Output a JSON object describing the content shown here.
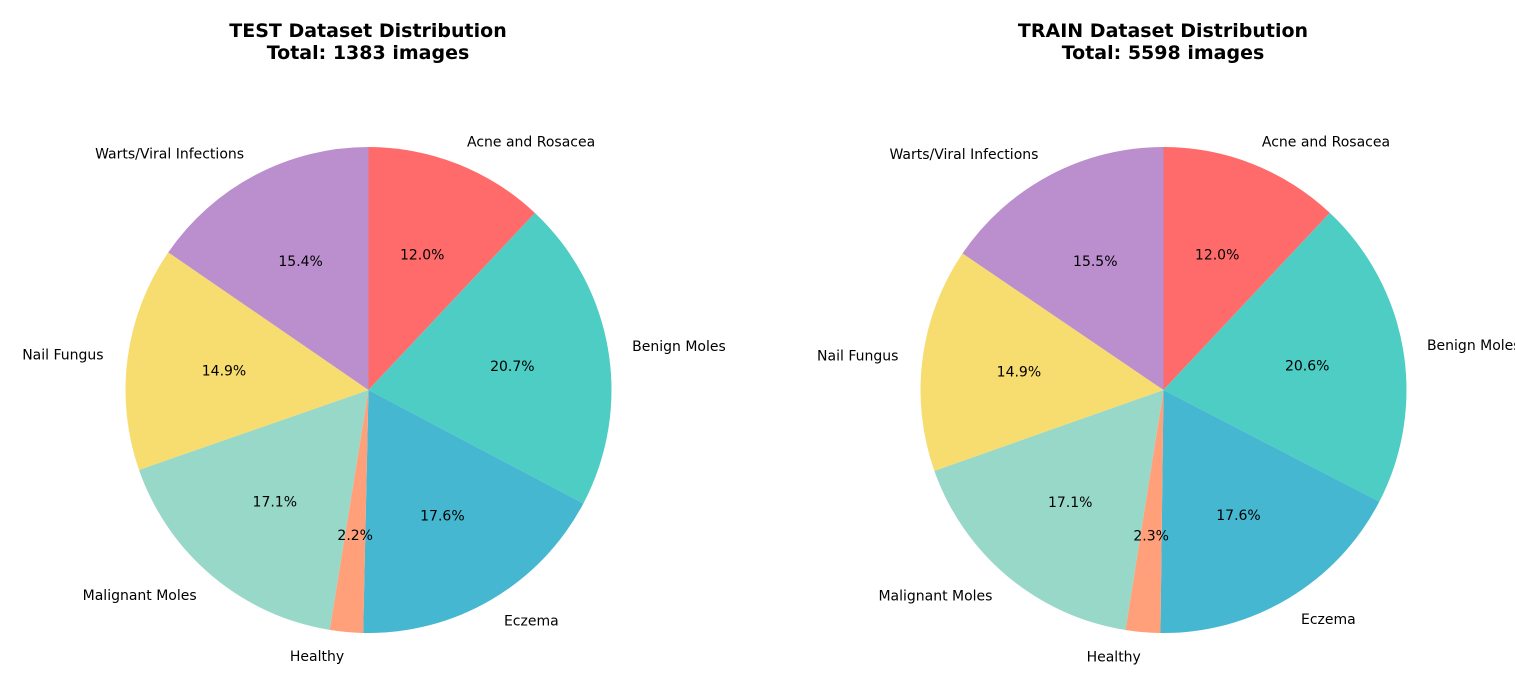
{
  "chart_data": [
    {
      "type": "pie",
      "title": "TEST Dataset Distribution",
      "subtitle": "Total: 1383 images",
      "start_angle_deg": 90,
      "direction": "clockwise",
      "slices": [
        {
          "label": "Acne and Rosacea",
          "value": 12.0,
          "pct_label": "12.0%",
          "color": "#FF6B6B"
        },
        {
          "label": "Benign Moles",
          "value": 20.7,
          "pct_label": "20.7%",
          "color": "#4ECDC4"
        },
        {
          "label": "Eczema",
          "value": 17.6,
          "pct_label": "17.6%",
          "color": "#45B7D1"
        },
        {
          "label": "Healthy",
          "value": 2.2,
          "pct_label": "2.2%",
          "color": "#FFA07A"
        },
        {
          "label": "Malignant Moles",
          "value": 17.1,
          "pct_label": "17.1%",
          "color": "#98D8C8"
        },
        {
          "label": "Nail Fungus",
          "value": 14.9,
          "pct_label": "14.9%",
          "color": "#F7DC6F"
        },
        {
          "label": "Warts/Viral Infections",
          "value": 15.4,
          "pct_label": "15.4%",
          "color": "#BB8FCE"
        }
      ]
    },
    {
      "type": "pie",
      "title": "TRAIN Dataset Distribution",
      "subtitle": "Total: 5598 images",
      "start_angle_deg": 90,
      "direction": "clockwise",
      "slices": [
        {
          "label": "Acne and Rosacea",
          "value": 12.0,
          "pct_label": "12.0%",
          "color": "#FF6B6B"
        },
        {
          "label": "Benign Moles",
          "value": 20.6,
          "pct_label": "20.6%",
          "color": "#4ECDC4"
        },
        {
          "label": "Eczema",
          "value": 17.6,
          "pct_label": "17.6%",
          "color": "#45B7D1"
        },
        {
          "label": "Healthy",
          "value": 2.3,
          "pct_label": "2.3%",
          "color": "#FFA07A"
        },
        {
          "label": "Malignant Moles",
          "value": 17.1,
          "pct_label": "17.1%",
          "color": "#98D8C8"
        },
        {
          "label": "Nail Fungus",
          "value": 14.9,
          "pct_label": "14.9%",
          "color": "#F7DC6F"
        },
        {
          "label": "Warts/Viral Infections",
          "value": 15.5,
          "pct_label": "15.5%",
          "color": "#BB8FCE"
        }
      ]
    }
  ]
}
